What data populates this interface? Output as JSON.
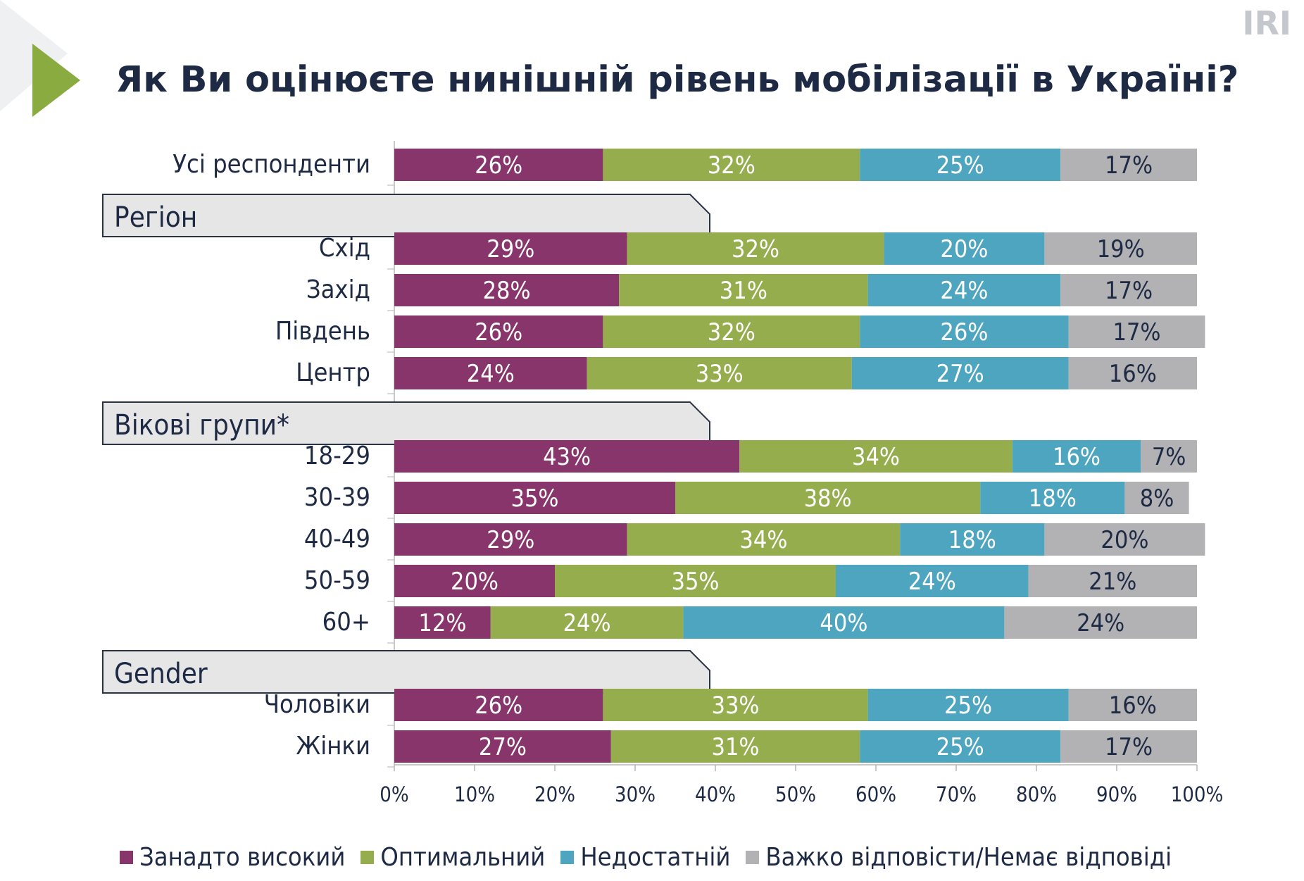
{
  "header": {
    "title": "Як Ви оцінюєте нинішній рівень мобілізації в Україні?",
    "brand": "IRI"
  },
  "colors": {
    "accent": "#8aab3f",
    "text": "#1e2a44",
    "section_box_fill": "#e6e6e7",
    "series": [
      "#87356b",
      "#96ad4e",
      "#4ea5c0",
      "#b2b2b4"
    ]
  },
  "legend": [
    {
      "label": "Занадто високий",
      "color": "#87356b"
    },
    {
      "label": "Оптимальний",
      "color": "#96ad4e"
    },
    {
      "label": "Недостатній",
      "color": "#4ea5c0"
    },
    {
      "label": "Важко відповісти/Немає відповіді",
      "color": "#b2b2b4"
    }
  ],
  "chart_data": {
    "type": "bar",
    "orientation": "horizontal",
    "stacked": true,
    "title": "Як Ви оцінюєте нинішній рівень мобілізації в Україні?",
    "xlabel": "",
    "ylabel": "",
    "xlim": [
      0,
      100
    ],
    "x_ticks": [
      "0%",
      "10%",
      "20%",
      "30%",
      "40%",
      "50%",
      "60%",
      "70%",
      "80%",
      "90%",
      "100%"
    ],
    "legend_position": "bottom",
    "series_names": [
      "Занадто високий",
      "Оптимальний",
      "Недостатній",
      "Важко відповісти/Немає відповіді"
    ],
    "rows": [
      {
        "kind": "bar",
        "label": "Усі респонденти",
        "values": [
          26,
          32,
          25,
          17
        ]
      },
      {
        "kind": "section",
        "label": "Регіон"
      },
      {
        "kind": "bar",
        "label": "Схід",
        "values": [
          29,
          32,
          20,
          19
        ]
      },
      {
        "kind": "bar",
        "label": "Захід",
        "values": [
          28,
          31,
          24,
          17
        ]
      },
      {
        "kind": "bar",
        "label": "Південь",
        "values": [
          26,
          32,
          26,
          17
        ]
      },
      {
        "kind": "bar",
        "label": "Центр",
        "values": [
          24,
          33,
          27,
          16
        ]
      },
      {
        "kind": "section",
        "label": "Вікові групи*"
      },
      {
        "kind": "bar",
        "label": "18-29",
        "values": [
          43,
          34,
          16,
          7
        ]
      },
      {
        "kind": "bar",
        "label": "30-39",
        "values": [
          35,
          38,
          18,
          8
        ]
      },
      {
        "kind": "bar",
        "label": "40-49",
        "values": [
          29,
          34,
          18,
          20
        ]
      },
      {
        "kind": "bar",
        "label": "50-59",
        "values": [
          20,
          35,
          24,
          21
        ]
      },
      {
        "kind": "bar",
        "label": "60+",
        "values": [
          12,
          24,
          40,
          24
        ]
      },
      {
        "kind": "section",
        "label": "Gender"
      },
      {
        "kind": "bar",
        "label": "Чоловіки",
        "values": [
          26,
          33,
          25,
          16
        ]
      },
      {
        "kind": "bar",
        "label": "Жінки",
        "values": [
          27,
          31,
          25,
          17
        ]
      }
    ]
  }
}
